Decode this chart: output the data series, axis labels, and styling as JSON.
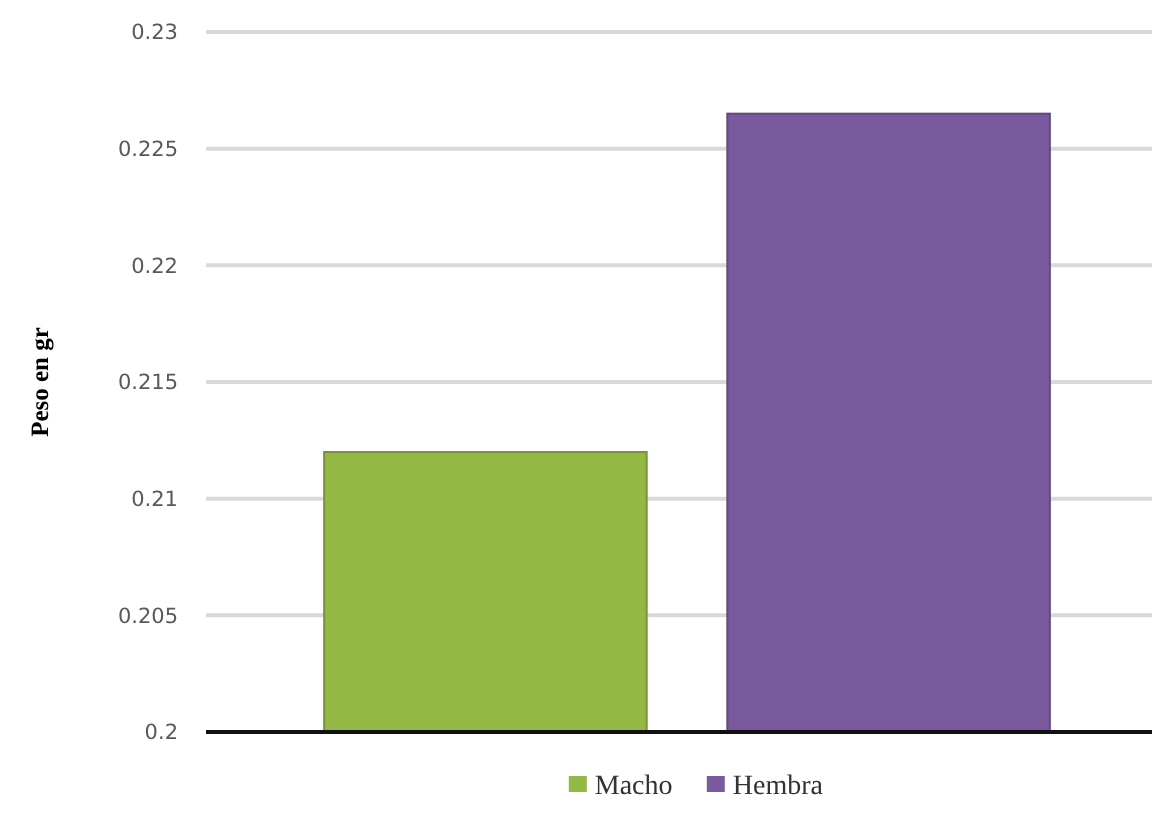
{
  "chart_data": {
    "type": "bar",
    "ylabel": "Peso en gr",
    "categories": [
      null
    ],
    "series": [
      {
        "name": "Macho",
        "color": "#93b844",
        "values": [
          0.212
        ]
      },
      {
        "name": "Hembra",
        "color": "#7a5a9f",
        "values": [
          0.2265
        ]
      }
    ],
    "ylim": [
      0.2,
      0.23
    ],
    "yticks": [
      0.2,
      0.205,
      0.21,
      0.215,
      0.22,
      0.225,
      0.23
    ],
    "grid": "y",
    "legend": "bottom"
  }
}
